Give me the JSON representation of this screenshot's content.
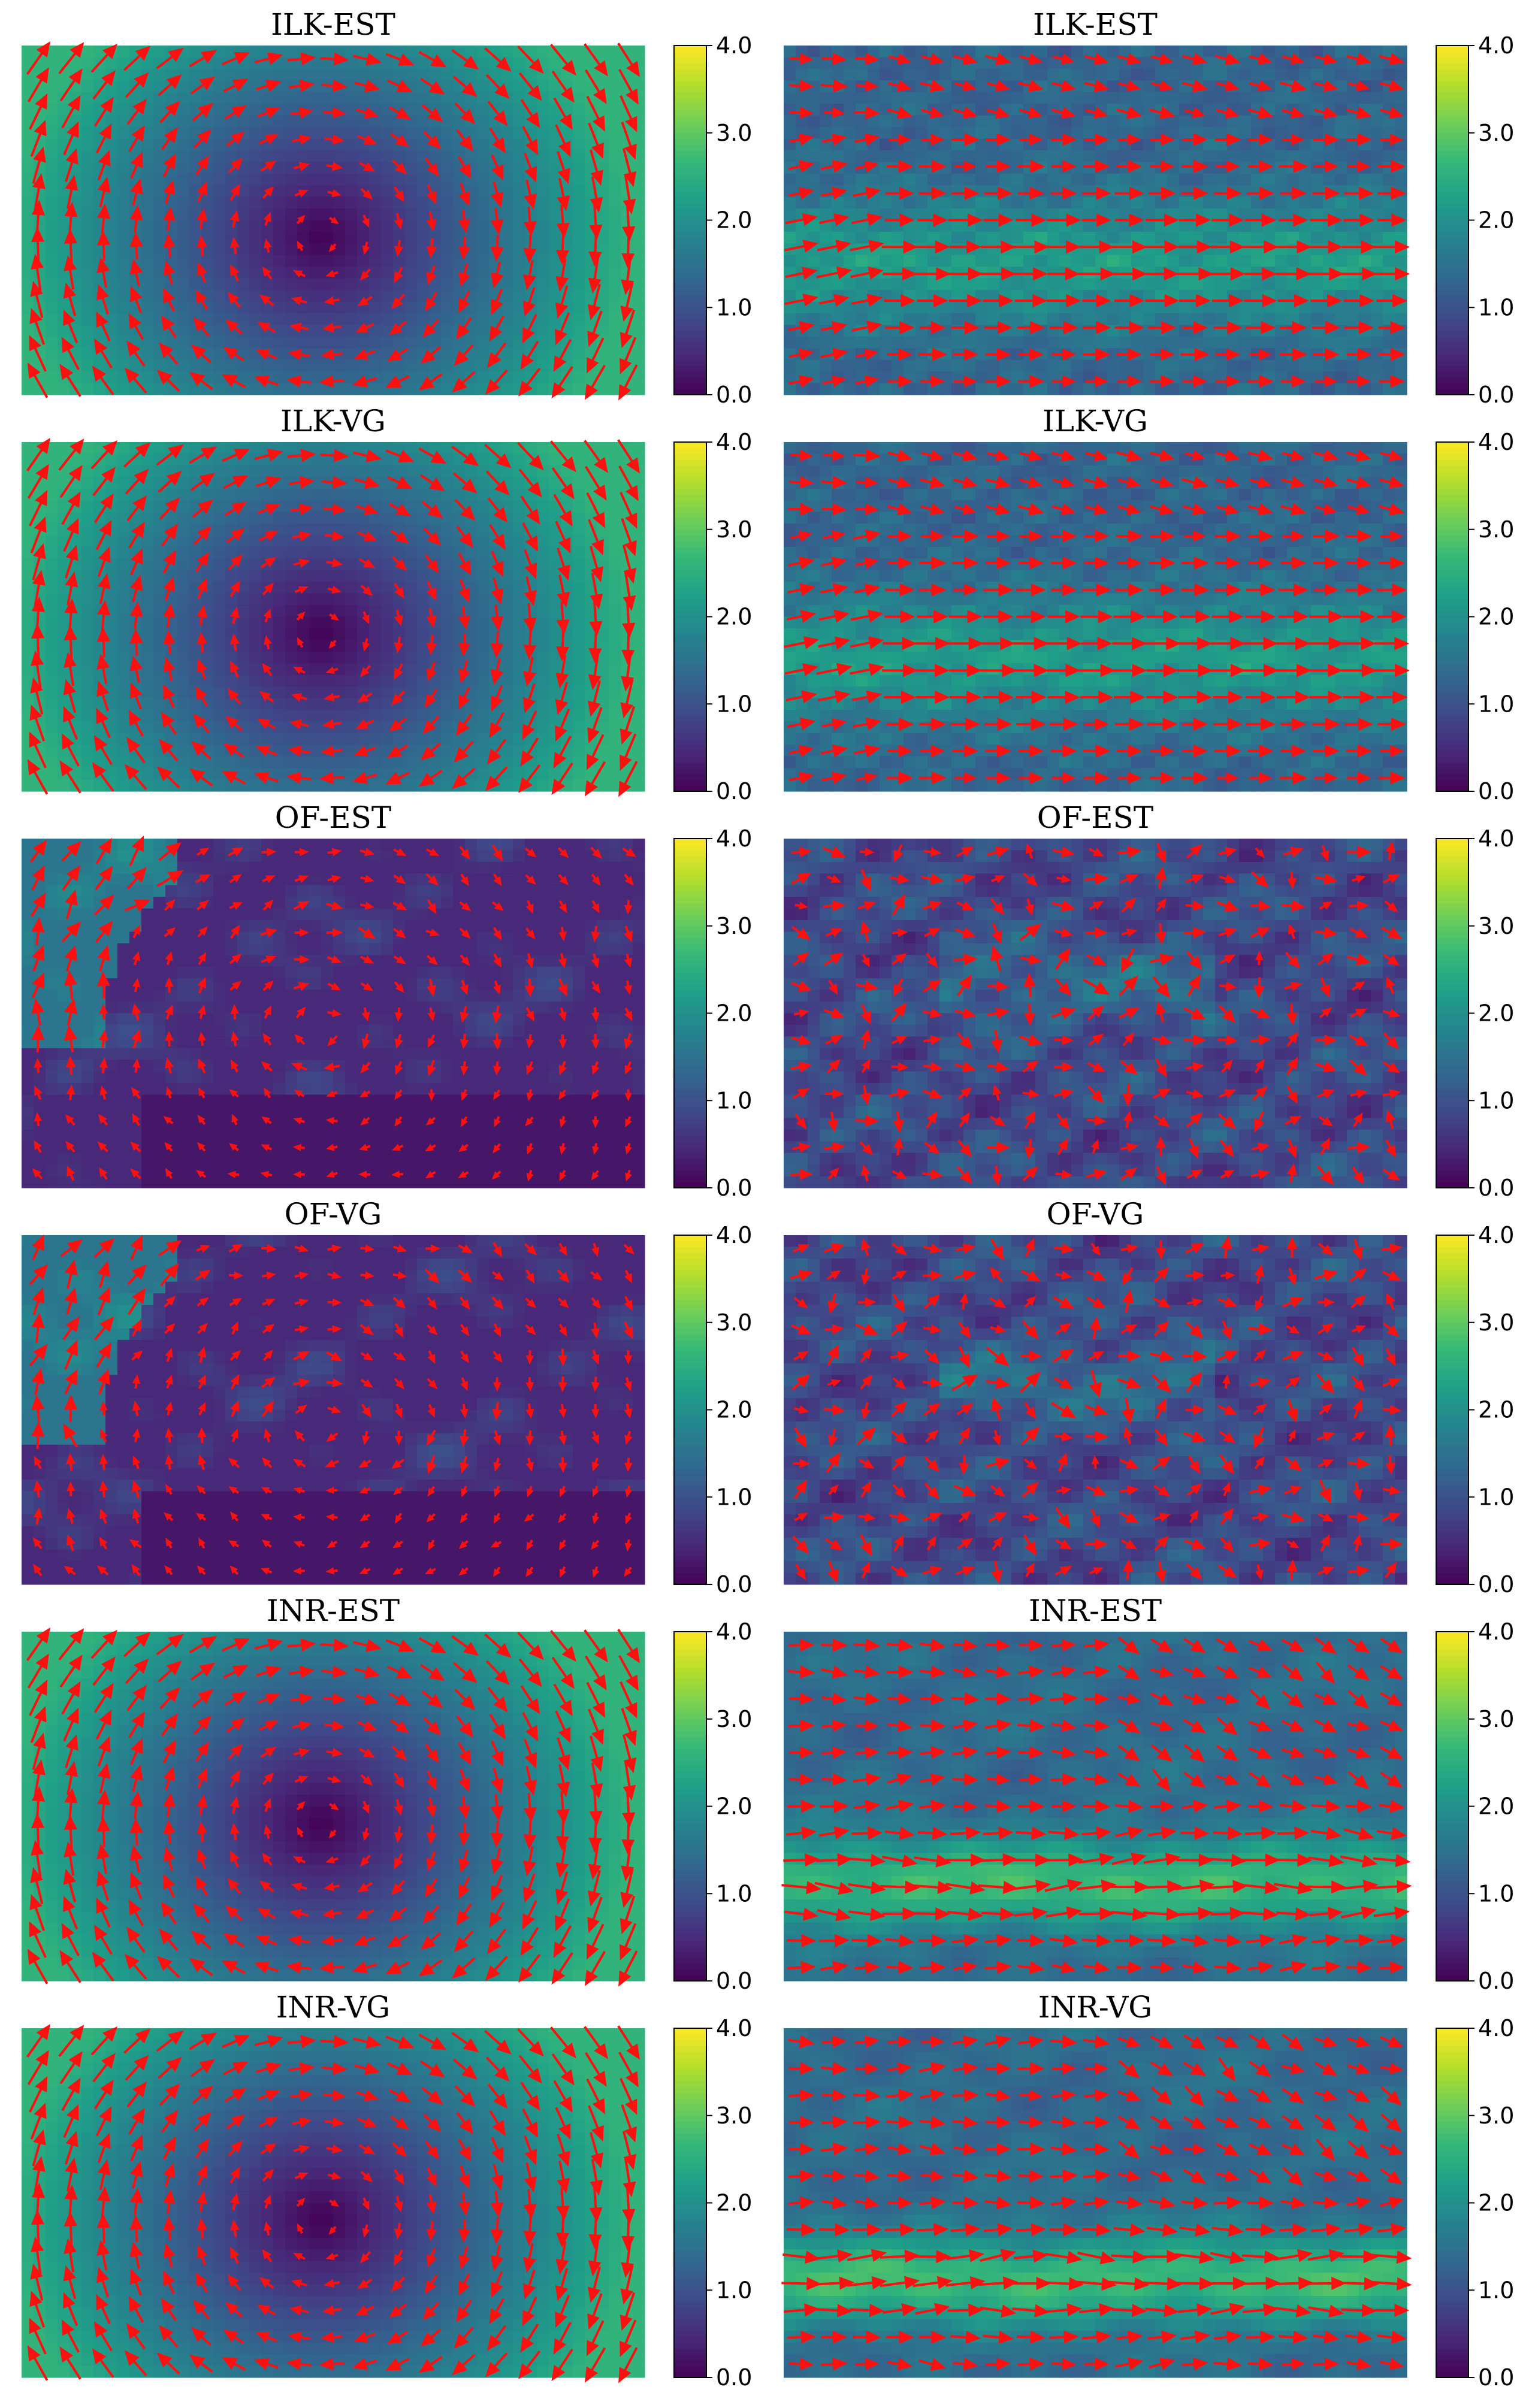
{
  "colors": {
    "arrow": "#ff1010",
    "viridis": [
      "#440154",
      "#482878",
      "#3e4a89",
      "#31688e",
      "#26828e",
      "#1f9e89",
      "#35b779",
      "#6ece58",
      "#b5de2b",
      "#fde725"
    ]
  },
  "chart_data": [
    {
      "type": "heatmap",
      "title": "ILK-EST",
      "pattern": "vortex",
      "colorbar": {
        "range": [
          0,
          4
        ],
        "ticks": [
          "0.0",
          "1.0",
          "2.0",
          "3.0",
          "4.0"
        ]
      }
    },
    {
      "type": "heatmap",
      "title": "ILK-EST",
      "pattern": "flow",
      "colorbar": {
        "range": [
          0,
          4
        ],
        "ticks": [
          "0.0",
          "1.0",
          "2.0",
          "3.0",
          "4.0"
        ]
      }
    },
    {
      "type": "heatmap",
      "title": "ILK-VG",
      "pattern": "vortex",
      "colorbar": {
        "range": [
          0,
          4
        ],
        "ticks": [
          "0.0",
          "1.0",
          "2.0",
          "3.0",
          "4.0"
        ]
      }
    },
    {
      "type": "heatmap",
      "title": "ILK-VG",
      "pattern": "flow",
      "colorbar": {
        "range": [
          0,
          4
        ],
        "ticks": [
          "0.0",
          "1.0",
          "2.0",
          "3.0",
          "4.0"
        ]
      }
    },
    {
      "type": "heatmap",
      "title": "OF-EST",
      "pattern": "vortex-noisy",
      "colorbar": {
        "range": [
          0,
          4
        ],
        "ticks": [
          "0.0",
          "1.0",
          "2.0",
          "3.0",
          "4.0"
        ]
      }
    },
    {
      "type": "heatmap",
      "title": "OF-EST",
      "pattern": "flow-noisy",
      "colorbar": {
        "range": [
          0,
          4
        ],
        "ticks": [
          "0.0",
          "1.0",
          "2.0",
          "3.0",
          "4.0"
        ]
      }
    },
    {
      "type": "heatmap",
      "title": "OF-VG",
      "pattern": "vortex-noisy",
      "colorbar": {
        "range": [
          0,
          4
        ],
        "ticks": [
          "0.0",
          "1.0",
          "2.0",
          "3.0",
          "4.0"
        ]
      }
    },
    {
      "type": "heatmap",
      "title": "OF-VG",
      "pattern": "flow-noisy",
      "colorbar": {
        "range": [
          0,
          4
        ],
        "ticks": [
          "0.0",
          "1.0",
          "2.0",
          "3.0",
          "4.0"
        ]
      }
    },
    {
      "type": "heatmap",
      "title": "INR-EST",
      "pattern": "vortex",
      "colorbar": {
        "range": [
          0,
          4
        ],
        "ticks": [
          "0.0",
          "1.0",
          "2.0",
          "3.0",
          "4.0"
        ]
      }
    },
    {
      "type": "heatmap",
      "title": "INR-EST",
      "pattern": "flow-smooth",
      "colorbar": {
        "range": [
          0,
          4
        ],
        "ticks": [
          "0.0",
          "1.0",
          "2.0",
          "3.0",
          "4.0"
        ]
      }
    },
    {
      "type": "heatmap",
      "title": "INR-VG",
      "pattern": "vortex",
      "colorbar": {
        "range": [
          0,
          4
        ],
        "ticks": [
          "0.0",
          "1.0",
          "2.0",
          "3.0",
          "4.0"
        ]
      }
    },
    {
      "type": "heatmap",
      "title": "INR-VG",
      "pattern": "flow-smooth",
      "colorbar": {
        "range": [
          0,
          4
        ],
        "ticks": [
          "0.0",
          "1.0",
          "2.0",
          "3.0",
          "4.0"
        ]
      }
    }
  ]
}
